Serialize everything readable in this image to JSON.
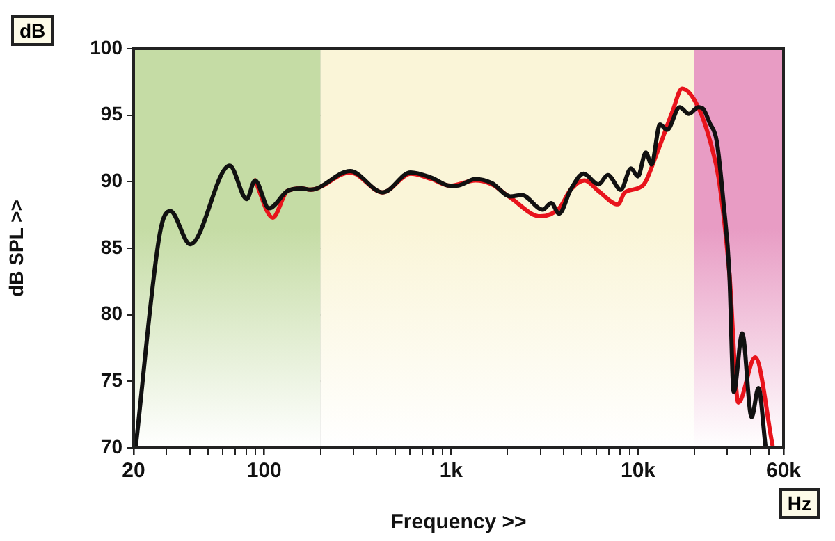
{
  "chart_data": {
    "type": "line",
    "xlabel": "Frequency >>",
    "ylabel": "dB SPL >>",
    "annotations": [
      "dB",
      "Hz"
    ],
    "log": "x",
    "grid": true,
    "legend": false,
    "marker": "none",
    "line_style": "solid",
    "xlim": [
      20,
      60000
    ],
    "ylim": [
      70,
      100
    ],
    "xticks": [
      20,
      {
        "value": 30,
        "label": null
      },
      {
        "value": 40,
        "label": null
      },
      {
        "value": 50,
        "label": null
      },
      {
        "value": 60,
        "label": null
      },
      {
        "value": 70,
        "label": null
      },
      {
        "value": 80,
        "label": null
      },
      {
        "value": 90,
        "label": null
      },
      100,
      {
        "value": 200,
        "label": null
      },
      {
        "value": 300,
        "label": null
      },
      {
        "value": 400,
        "label": null
      },
      {
        "value": 500,
        "label": null
      },
      {
        "value": 600,
        "label": null
      },
      {
        "value": 700,
        "label": null
      },
      {
        "value": 800,
        "label": null
      },
      {
        "value": 900,
        "label": null
      },
      {
        "value": 1000,
        "label": "1k"
      },
      {
        "value": 2000,
        "label": null
      },
      {
        "value": 3000,
        "label": null
      },
      {
        "value": 4000,
        "label": null
      },
      {
        "value": 5000,
        "label": null
      },
      {
        "value": 6000,
        "label": null
      },
      {
        "value": 7000,
        "label": null
      },
      {
        "value": 8000,
        "label": null
      },
      {
        "value": 9000,
        "label": null
      },
      {
        "value": 10000,
        "label": "10k"
      },
      {
        "value": 20000,
        "label": null
      },
      {
        "value": 30000,
        "label": null
      },
      {
        "value": 40000,
        "label": null
      },
      {
        "value": 50000,
        "label": null
      },
      {
        "value": 60000,
        "label": "60k"
      }
    ],
    "yticks": [
      70,
      75,
      80,
      85,
      90,
      95,
      100
    ],
    "bands": [
      {
        "axis": "x",
        "from": 20,
        "to": 200,
        "color": "#c5dca5"
      },
      {
        "axis": "x",
        "from": 200,
        "to": 20000,
        "color": "#faf5d8"
      },
      {
        "axis": "x",
        "from": 20000,
        "to": 60000,
        "color": "#e89cc4"
      }
    ],
    "series": [
      {
        "color": "#e8141c",
        "x": [
          89.3,
          111,
          133,
          158,
          177,
          288,
          431,
          607,
          785,
          986,
          1349,
          1648,
          2075,
          3000,
          3780,
          4360,
          5180,
          6140,
          7800,
          8500,
          10600,
          12500,
          15300,
          17200,
          21000,
          24900,
          27100,
          30800,
          34400,
          42300,
          52400
        ],
        "values": [
          90.1,
          87.3,
          89.3,
          89.5,
          89.4,
          90.7,
          89.2,
          90.6,
          90.2,
          89.7,
          90.1,
          89.8,
          88.8,
          87.4,
          88.0,
          89.4,
          90.1,
          89.3,
          88.3,
          89.2,
          89.7,
          92.0,
          95.3,
          97.0,
          95.6,
          92.5,
          90.1,
          83.1,
          73.4,
          76.8,
          70.2
        ]
      },
      {
        "color": "#111111",
        "x": [
          20.5,
          27.7,
          31.4,
          40.2,
          65.3,
          80.6,
          89.3,
          106,
          133,
          158,
          177,
          288,
          431,
          607,
          785,
          986,
          1074,
          1349,
          1648,
          2075,
          2390,
          3090,
          3430,
          3780,
          4360,
          5110,
          6140,
          6890,
          8080,
          9160,
          9980,
          11000,
          11800,
          13100,
          14300,
          16700,
          18700,
          21000,
          22200,
          24200,
          26400,
          28700,
          30800,
          32500,
          36100,
          40500,
          44100,
          48000
        ],
        "values": [
          70,
          86.2,
          87.8,
          85.3,
          91.2,
          88.7,
          90.1,
          88.0,
          89.3,
          89.5,
          89.4,
          90.8,
          89.2,
          90.7,
          90.3,
          89.7,
          89.7,
          90.2,
          89.9,
          88.9,
          89.0,
          87.9,
          88.4,
          87.6,
          89.4,
          90.6,
          89.8,
          90.5,
          89.4,
          91.0,
          90.4,
          92.2,
          91.3,
          94.3,
          93.9,
          95.6,
          95.1,
          95.6,
          95.5,
          94.4,
          93.0,
          88.3,
          83.1,
          74.2,
          78.6,
          72.3,
          74.5,
          70.2
        ]
      }
    ]
  }
}
